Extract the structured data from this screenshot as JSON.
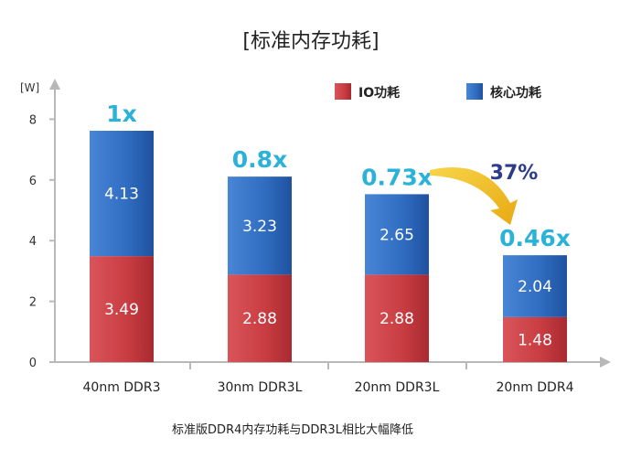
{
  "chart_data": {
    "type": "bar",
    "stacked": true,
    "title": "[标准内存功耗]",
    "ylabel": "[W]",
    "xlabel": "",
    "ylim": [
      0,
      8.9
    ],
    "yticks": [
      0,
      2,
      4,
      6,
      8
    ],
    "categories": [
      "40nm DDR3",
      "30nm DDR3L",
      "20nm DDR3L",
      "20nm DDR4"
    ],
    "series": [
      {
        "name": "IO功耗",
        "color": "#c83c41",
        "values": [
          3.49,
          2.88,
          2.88,
          1.48
        ],
        "labels": [
          "3.49",
          "2.88",
          "2.88",
          "1.48"
        ]
      },
      {
        "name": "核心功耗",
        "color": "#2f6bbf",
        "values": [
          4.13,
          3.23,
          2.65,
          2.04
        ],
        "labels": [
          "4.13",
          "3.23",
          "2.65",
          "2.04"
        ]
      }
    ],
    "ratio_labels": [
      "1x",
      "0.8x",
      "0.73x",
      "0.46x"
    ],
    "annotation": {
      "text": "37%",
      "from_category": 2,
      "to_category": 3,
      "arrow_color": "#f2c01e"
    },
    "caption": "标准版DDR4内存功耗与DDR3L相比大幅降低",
    "legend_position": "top-right",
    "grid": false
  }
}
